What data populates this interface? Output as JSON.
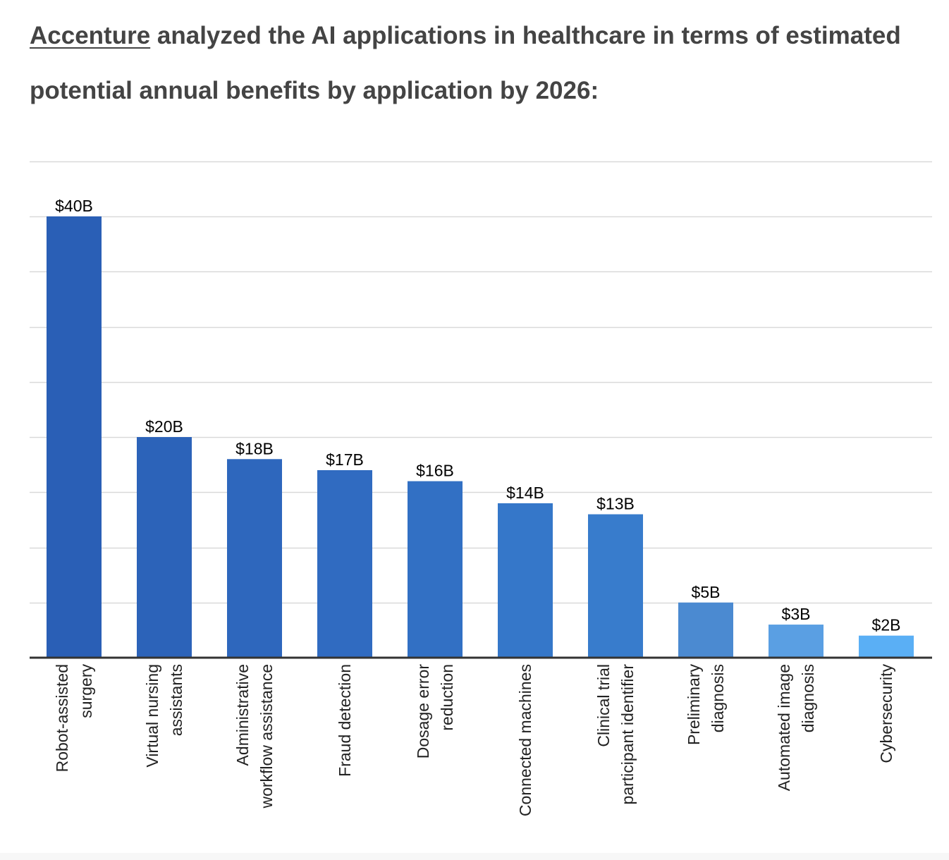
{
  "heading": {
    "link_text": "Accenture",
    "rest_text": " analyzed the AI applications in healthcare in terms of estimated potential annual benefits by application by 2026:"
  },
  "chart_data": {
    "type": "bar",
    "categories": [
      "Robot-assisted surgery",
      "Virtual nursing assistants",
      "Administrative workflow assistance",
      "Fraud detection",
      "Dosage error reduction",
      "Connected machines",
      "Clinical trial participant identifier",
      "Preliminary diagnosis",
      "Automated image diagnosis",
      "Cybersecurity"
    ],
    "category_label_lines": [
      [
        "Robot-assisted",
        "surgery"
      ],
      [
        "Virtual nursing",
        "assistants"
      ],
      [
        "Administrative",
        "workflow assistance"
      ],
      [
        "Fraud detection"
      ],
      [
        "Dosage error",
        "reduction"
      ],
      [
        "Connected machines"
      ],
      [
        "Clinical trial",
        "participant identifier"
      ],
      [
        "Preliminary",
        "diagnosis"
      ],
      [
        "Automated image",
        "diagnosis"
      ],
      [
        "Cybersecurity"
      ]
    ],
    "values": [
      40,
      20,
      18,
      17,
      16,
      14,
      13,
      5,
      3,
      2
    ],
    "data_labels": [
      "$40B",
      "$20B",
      "$18B",
      "$17B",
      "$16B",
      "$14B",
      "$13B",
      "$5B",
      "$3B",
      "$2B"
    ],
    "bar_colors": [
      "#2a5fb6",
      "#2c63b9",
      "#2e67bd",
      "#306bc1",
      "#3270c4",
      "#3577c9",
      "#387ccc",
      "#4b8ad1",
      "#5a9fe3",
      "#5aaff5"
    ],
    "ylim": [
      0,
      45
    ],
    "grid": true,
    "legend": "none",
    "title": "",
    "xlabel": "",
    "ylabel": ""
  }
}
